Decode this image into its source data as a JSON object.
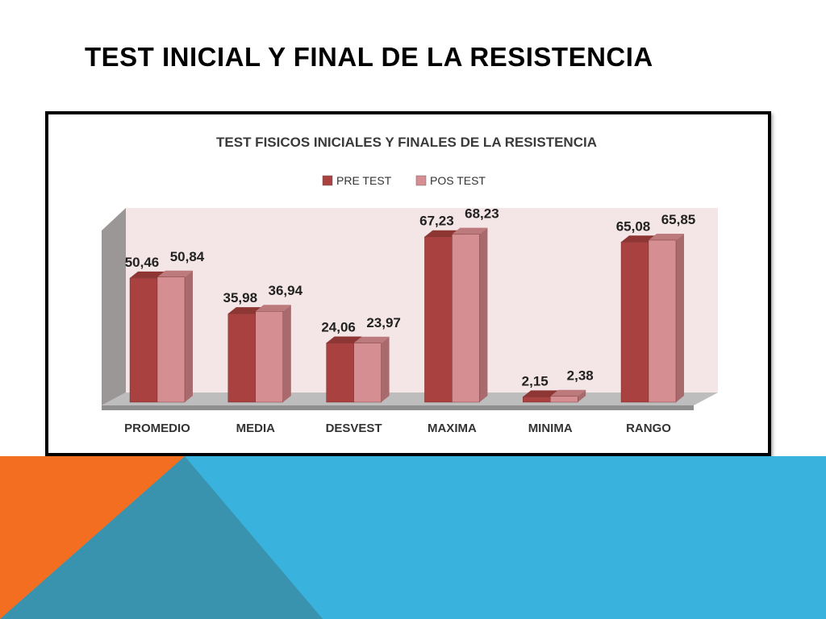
{
  "slide": {
    "title": "TEST INICIAL Y FINAL DE LA RESISTENCIA"
  },
  "colors": {
    "pre_test": "#A8413F",
    "pos_test": "#D58F92",
    "plot_wall": "#F4E5E6",
    "band_blue": "#3AB2DE",
    "band_orange": "#F36E21",
    "band_teal": "#3A93AE"
  },
  "chart_data": {
    "type": "bar",
    "title": "TEST FISICOS INICIALES Y FINALES DE LA RESISTENCIA",
    "xlabel": "",
    "ylabel": "",
    "ylim": [
      0,
      75
    ],
    "grid": false,
    "legend_position": "top-center",
    "style": "3d-clustered-column",
    "categories": [
      "PROMEDIO",
      "MEDIA",
      "DESVEST",
      "MAXIMA",
      "MINIMA",
      "RANGO"
    ],
    "series": [
      {
        "name": "PRE TEST",
        "values": [
          50.46,
          35.98,
          24.06,
          67.23,
          2.15,
          65.08
        ],
        "labels": [
          "50,46",
          "35,98",
          "24,06",
          "67,23",
          "2,15",
          "65,08"
        ]
      },
      {
        "name": "POS TEST",
        "values": [
          50.84,
          36.94,
          23.97,
          68.23,
          2.38,
          65.85
        ],
        "labels": [
          "50,84",
          "36,94",
          "23,97",
          "68,23",
          "2,38",
          "65,85"
        ]
      }
    ]
  }
}
